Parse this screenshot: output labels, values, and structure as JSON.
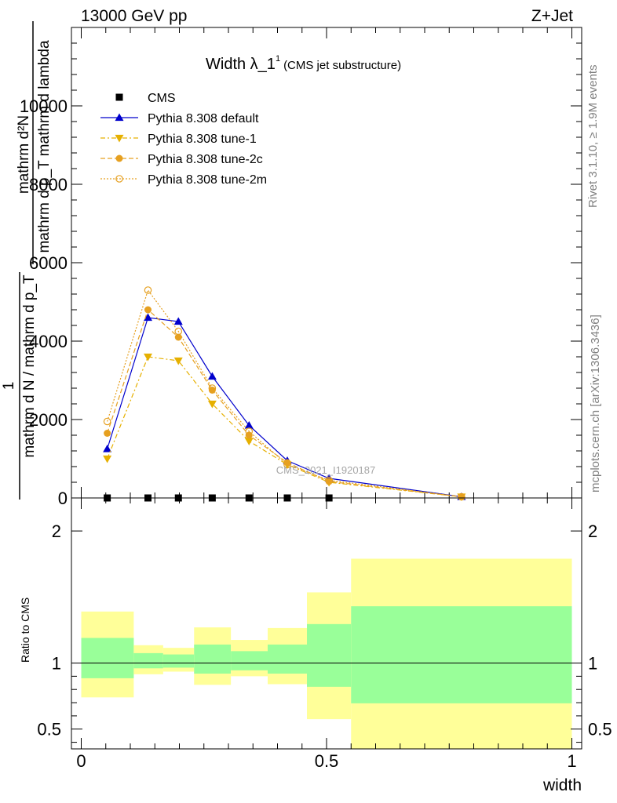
{
  "header": {
    "left": "13000 GeV pp",
    "right": "Z+Jet"
  },
  "side_labels": {
    "rivet": "Rivet 3.1.10, ≥ 1.9M events",
    "mcplots": "mcplots.cern.ch [arXiv:1306.3436]"
  },
  "watermark": "CMS_2021_I1920187",
  "chart_data": [
    {
      "type": "line",
      "title_main": "Width λ_1",
      "title_sup": "1",
      "title_sub": "(CMS jet substructure)",
      "ylabel_lines": [
        "mathrm d²N",
        "mathrm d p_T mathrm d lambda",
        "1",
        "mathrm d N / mathrm d p_T"
      ],
      "y_ticks": [
        {
          "value": 0,
          "label": "0"
        },
        {
          "value": 2000,
          "label": "2000"
        },
        {
          "value": 4000,
          "label": "4000"
        },
        {
          "value": 6000,
          "label": "6000"
        },
        {
          "value": 8000,
          "label": "8000"
        },
        {
          "value": 10000,
          "label": "10000"
        }
      ],
      "xlim": [
        -0.02,
        1.02
      ],
      "ylim": [
        0,
        12000
      ],
      "legend_placement": "top-left",
      "series": [
        {
          "name": "CMS",
          "color": "#000000",
          "marker": "square",
          "line": "none",
          "x": [
            0.053,
            0.136,
            0.198,
            0.267,
            0.342,
            0.42,
            0.505
          ],
          "y": [
            0,
            0,
            0,
            0,
            0,
            0,
            0
          ]
        },
        {
          "name": "Pythia 8.308 default",
          "color": "#0000cc",
          "marker": "triangle-up",
          "line": "solid",
          "x": [
            0.053,
            0.136,
            0.198,
            0.267,
            0.342,
            0.42,
            0.505,
            0.775
          ],
          "y": [
            1250,
            4600,
            4500,
            3100,
            1850,
            950,
            500,
            30
          ]
        },
        {
          "name": "Pythia 8.308 tune-1",
          "color": "#e6b000",
          "marker": "triangle-down",
          "line": "dashdot",
          "x": [
            0.053,
            0.136,
            0.198,
            0.267,
            0.342,
            0.42,
            0.505,
            0.775
          ],
          "y": [
            1000,
            3600,
            3500,
            2400,
            1450,
            850,
            400,
            30
          ]
        },
        {
          "name": "Pythia 8.308 tune-2c",
          "color": "#e6a020",
          "marker": "circle",
          "line": "dashed",
          "x": [
            0.053,
            0.136,
            0.198,
            0.267,
            0.342,
            0.42,
            0.505,
            0.775
          ],
          "y": [
            1650,
            4800,
            4100,
            2750,
            1600,
            900,
            420,
            30
          ]
        },
        {
          "name": "Pythia 8.308 tune-2m",
          "color": "#e6a020",
          "marker": "circle-open",
          "line": "dotted",
          "x": [
            0.053,
            0.136,
            0.198,
            0.267,
            0.342,
            0.42,
            0.505,
            0.775
          ],
          "y": [
            1950,
            5300,
            4250,
            2800,
            1700,
            850,
            450,
            30
          ]
        }
      ]
    },
    {
      "type": "area",
      "ylabel": "Ratio to CMS",
      "xlabel": "width",
      "xlim": [
        -0.02,
        1.02
      ],
      "ylim": [
        0.35,
        2.25
      ],
      "y_ticks": [
        {
          "value": 0.5,
          "label": "0.5"
        },
        {
          "value": 1,
          "label": "1"
        },
        {
          "value": 2,
          "label": "2"
        }
      ],
      "x_ticks": [
        {
          "value": 0,
          "label": "0"
        },
        {
          "value": 0.5,
          "label": "0.5"
        },
        {
          "value": 1,
          "label": "1"
        }
      ],
      "reference_line": 1,
      "bands_colors": {
        "outer": "#ffff99",
        "inner": "#99ff99"
      },
      "bins": [
        {
          "lo": 0.0,
          "hi": 0.107,
          "outer": [
            0.74,
            1.39
          ],
          "inner": [
            0.885,
            1.19
          ]
        },
        {
          "lo": 0.107,
          "hi": 0.167,
          "outer": [
            0.915,
            1.135
          ],
          "inner": [
            0.96,
            1.075
          ]
        },
        {
          "lo": 0.167,
          "hi": 0.23,
          "outer": [
            0.935,
            1.115
          ],
          "inner": [
            0.965,
            1.065
          ]
        },
        {
          "lo": 0.23,
          "hi": 0.305,
          "outer": [
            0.835,
            1.27
          ],
          "inner": [
            0.92,
            1.14
          ]
        },
        {
          "lo": 0.305,
          "hi": 0.38,
          "outer": [
            0.9,
            1.175
          ],
          "inner": [
            0.945,
            1.09
          ]
        },
        {
          "lo": 0.38,
          "hi": 0.46,
          "outer": [
            0.84,
            1.265
          ],
          "inner": [
            0.92,
            1.14
          ]
        },
        {
          "lo": 0.46,
          "hi": 0.55,
          "outer": [
            0.575,
            1.535
          ],
          "inner": [
            0.82,
            1.295
          ]
        },
        {
          "lo": 0.55,
          "hi": 1.0,
          "outer": [
            0.3,
            1.79
          ],
          "inner": [
            0.695,
            1.43
          ]
        }
      ]
    }
  ]
}
